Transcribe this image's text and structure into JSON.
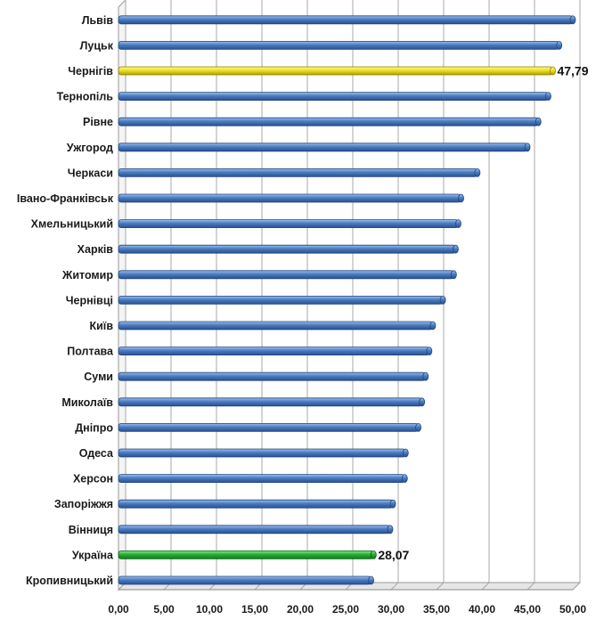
{
  "chart_data": {
    "type": "bar",
    "orientation": "horizontal",
    "categories": [
      "Львів",
      "Луцьк",
      "Чернігів",
      "Тернопіль",
      "Рівне",
      "Ужгород",
      "Черкаси",
      "Івано-Франківськ",
      "Хмельницький",
      "Харків",
      "Житомир",
      "Чернівці",
      "Київ",
      "Полтава",
      "Суми",
      "Миколаїв",
      "Дніпро",
      "Одеса",
      "Херсон",
      "Запоріжжя",
      "Вінниця",
      "Україна",
      "Кропивницький"
    ],
    "values": [
      50.0,
      48.5,
      47.79,
      47.3,
      46.2,
      45.0,
      39.5,
      37.7,
      37.4,
      37.1,
      36.9,
      35.7,
      34.6,
      34.2,
      33.8,
      33.4,
      33.0,
      31.6,
      31.5,
      30.2,
      29.9,
      28.07,
      27.8
    ],
    "highlight": {
      "Чернігів": "#f0e020",
      "Україна": "#22b030"
    },
    "data_labels": [
      {
        "category": "Чернігів",
        "text": "47,79"
      },
      {
        "category": "Україна",
        "text": "28,07"
      }
    ],
    "bar_color": "#4a7cc0",
    "xlim": [
      0,
      50
    ],
    "x_ticks": [
      "0,00",
      "5,00",
      "10,00",
      "15,00",
      "20,00",
      "25,00",
      "30,00",
      "35,00",
      "40,00",
      "45,00",
      "50,00"
    ],
    "title": "",
    "xlabel": "",
    "ylabel": "",
    "grid": true,
    "legend": "none"
  }
}
